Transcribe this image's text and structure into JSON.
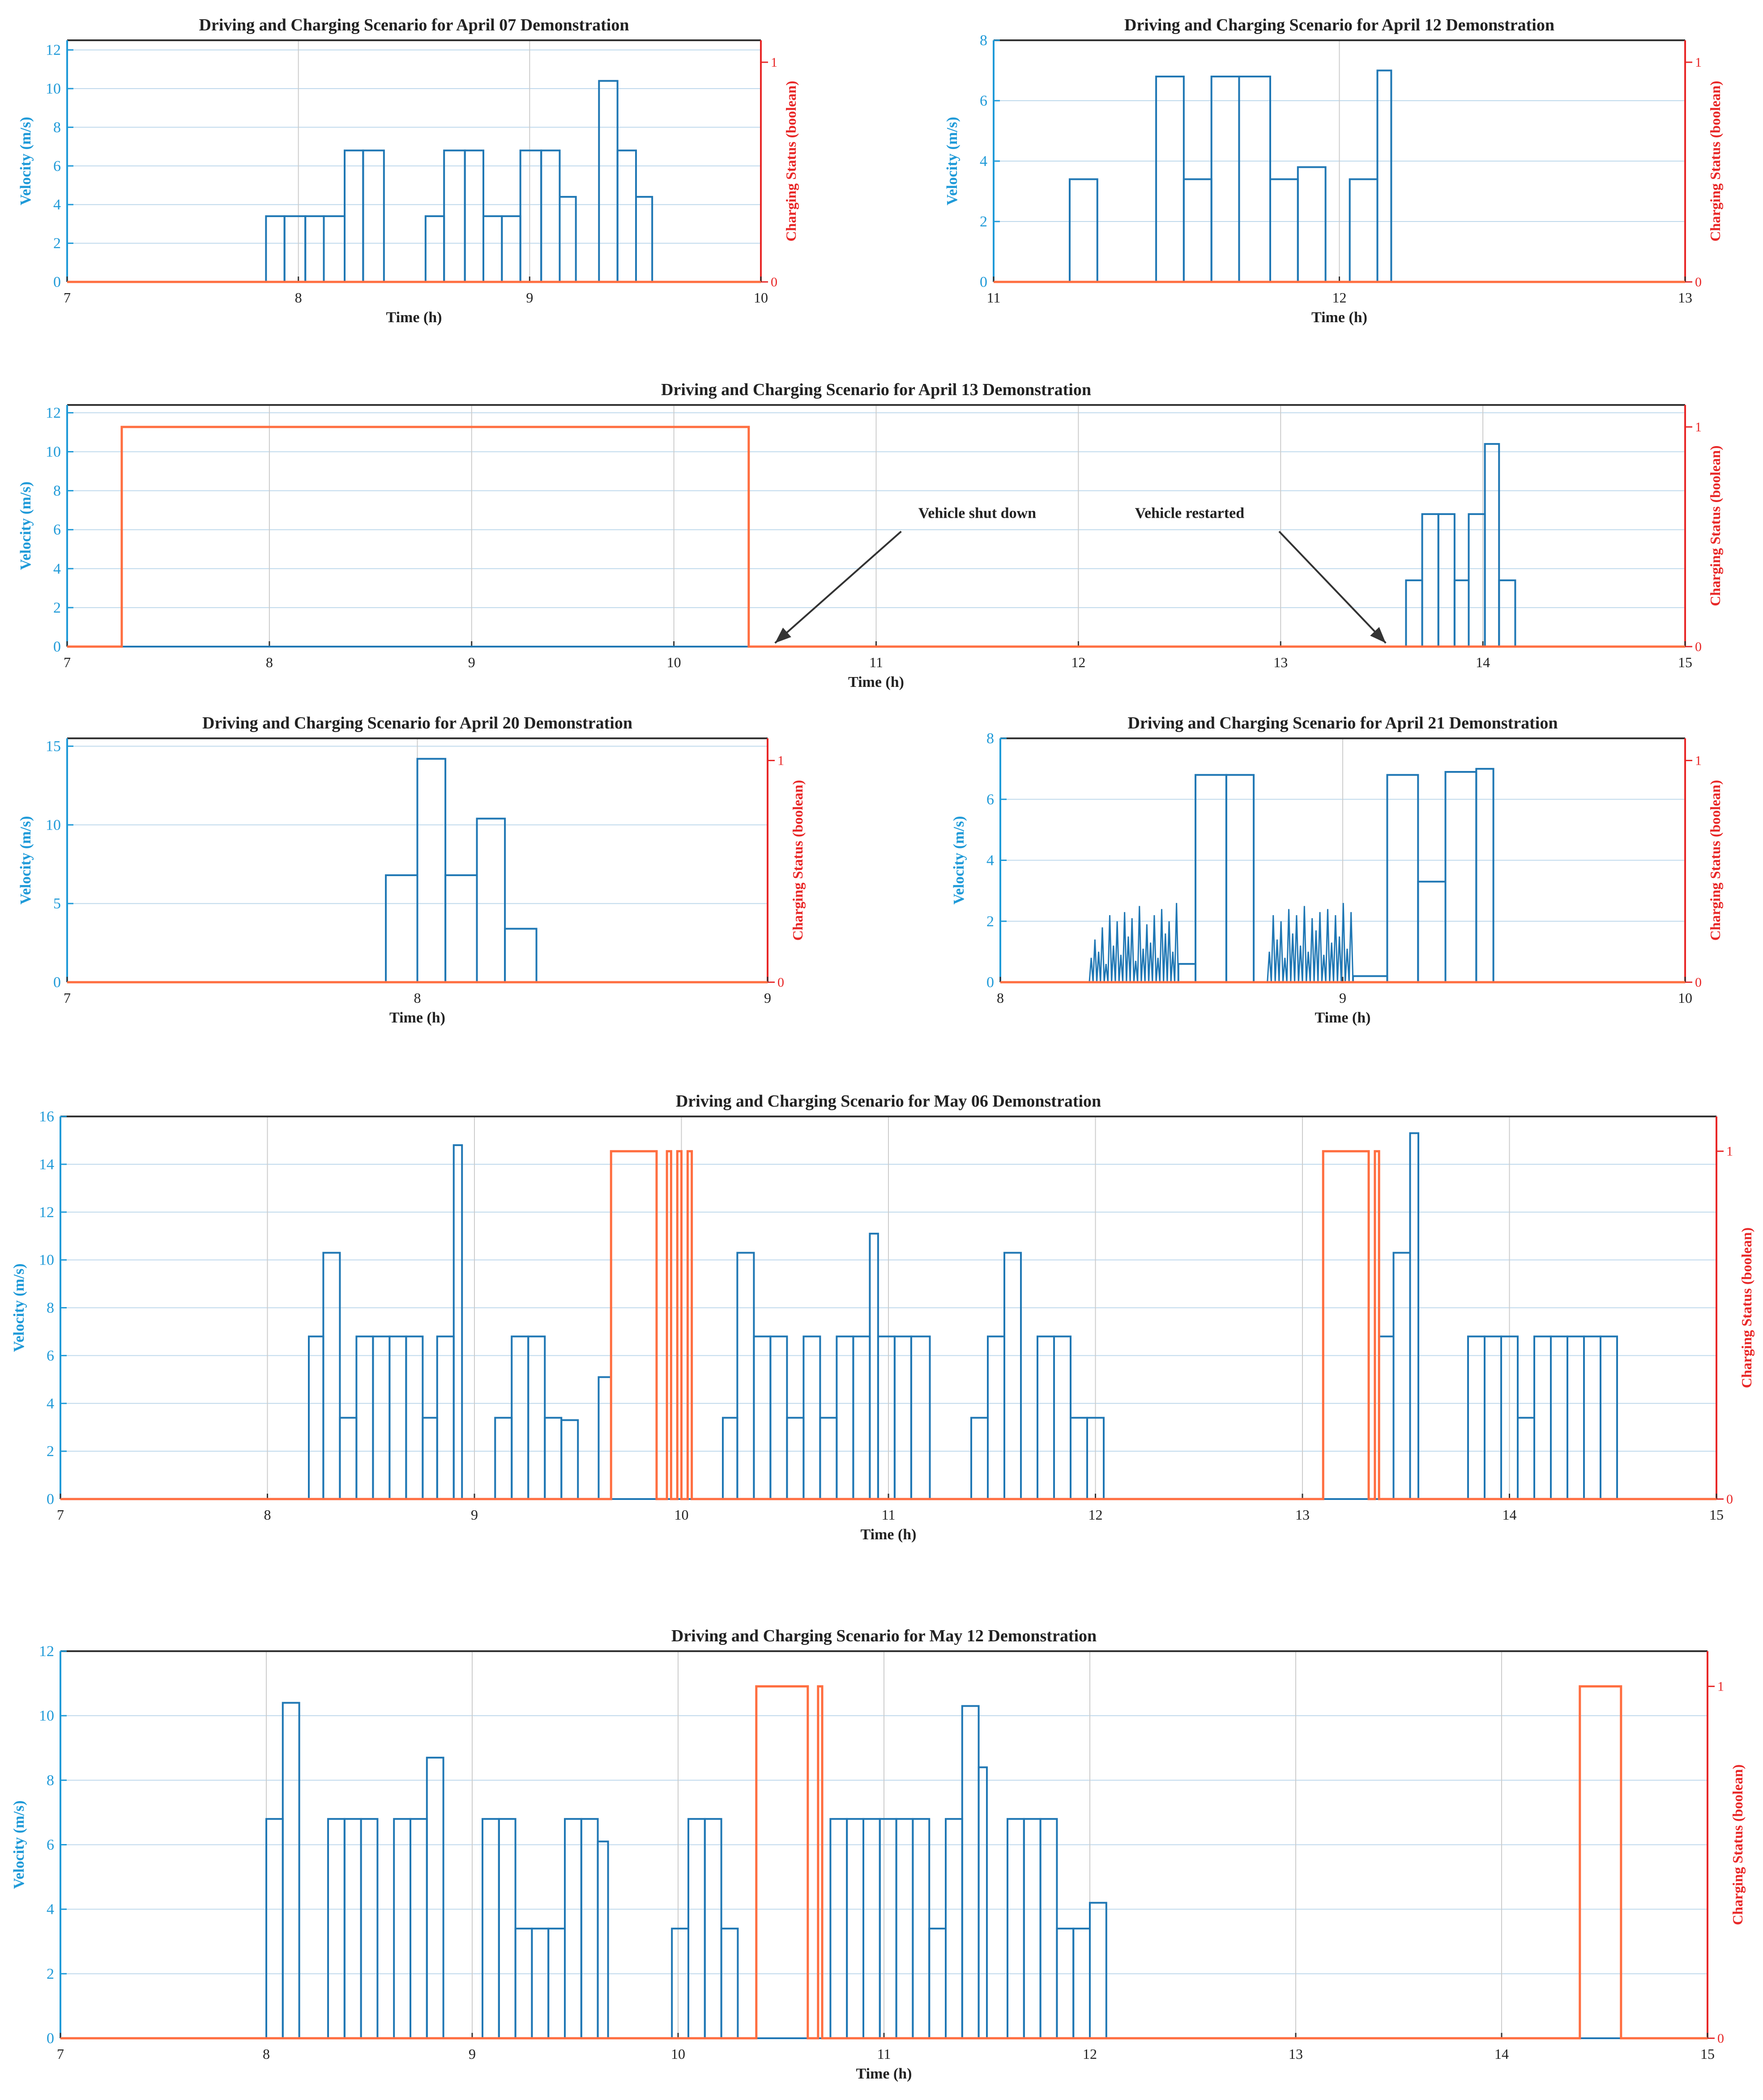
{
  "colors": {
    "velocity": "#1f77b4",
    "charging": "#ff6e40",
    "left_axis": "#1f9ad8",
    "right_axis": "#e82727",
    "grid": "#bfd9ec"
  },
  "chart_data": [
    {
      "id": "apr07",
      "type": "line",
      "title": "Driving and Charging Scenario for April 07 Demonstration",
      "xlabel": "Time (h)",
      "ylabel": "Velocity (m/s)",
      "ylabel_right": "Charging Status (boolean)",
      "xlim": [
        7,
        10
      ],
      "ylim": [
        0,
        12.5
      ],
      "ylim_right": [
        0,
        1.1
      ],
      "xticks": [
        7,
        8,
        9,
        10
      ],
      "yticks": [
        0,
        2,
        4,
        6,
        8,
        10,
        12
      ],
      "yticks_right": [
        0,
        1
      ],
      "grid": true,
      "velocity_pulses": [
        [
          7.86,
          7.94,
          3.4
        ],
        [
          7.94,
          8.03,
          3.4
        ],
        [
          8.03,
          8.11,
          3.4
        ],
        [
          8.11,
          8.2,
          3.4
        ],
        [
          8.2,
          8.28,
          6.8
        ],
        [
          8.28,
          8.37,
          6.8
        ],
        [
          8.55,
          8.63,
          3.4
        ],
        [
          8.63,
          8.72,
          6.8
        ],
        [
          8.72,
          8.8,
          6.8
        ],
        [
          8.8,
          8.88,
          3.4
        ],
        [
          8.88,
          8.96,
          3.4
        ],
        [
          8.96,
          9.05,
          6.8
        ],
        [
          9.05,
          9.13,
          6.8
        ],
        [
          9.13,
          9.2,
          4.4
        ],
        [
          9.3,
          9.38,
          10.4
        ],
        [
          9.38,
          9.46,
          6.8
        ],
        [
          9.46,
          9.53,
          4.4
        ]
      ],
      "charging_steps": [
        [
          7,
          0
        ],
        [
          10,
          0
        ]
      ]
    },
    {
      "id": "apr12",
      "type": "line",
      "title": "Driving and Charging Scenario for April 12 Demonstration",
      "xlabel": "Time (h)",
      "ylabel": "Velocity (m/s)",
      "ylabel_right": "Charging Status (boolean)",
      "xlim": [
        11,
        13
      ],
      "ylim": [
        0,
        8
      ],
      "ylim_right": [
        0,
        1.1
      ],
      "xticks": [
        11,
        12,
        13
      ],
      "yticks": [
        0,
        2,
        4,
        6,
        8
      ],
      "yticks_right": [
        0,
        1
      ],
      "grid": true,
      "velocity_pulses": [
        [
          11.22,
          11.3,
          3.4
        ],
        [
          11.47,
          11.55,
          6.8
        ],
        [
          11.55,
          11.63,
          3.4
        ],
        [
          11.63,
          11.71,
          6.8
        ],
        [
          11.71,
          11.8,
          6.8
        ],
        [
          11.8,
          11.88,
          3.4
        ],
        [
          11.88,
          11.96,
          3.8
        ],
        [
          12.03,
          12.11,
          3.4
        ],
        [
          12.11,
          12.15,
          7.0
        ]
      ],
      "charging_steps": [
        [
          11,
          0
        ],
        [
          13,
          0
        ]
      ]
    },
    {
      "id": "apr13",
      "type": "line",
      "title": "Driving and Charging Scenario for April 13 Demonstration",
      "xlabel": "Time (h)",
      "ylabel": "Velocity (m/s)",
      "ylabel_right": "Charging Status (boolean)",
      "xlim": [
        7,
        15
      ],
      "ylim": [
        0,
        12.4
      ],
      "ylim_right": [
        0,
        1.1
      ],
      "xticks": [
        7,
        8,
        9,
        10,
        11,
        12,
        13,
        14,
        15
      ],
      "yticks": [
        0,
        2,
        4,
        6,
        8,
        10,
        12
      ],
      "yticks_right": [
        0,
        1
      ],
      "grid": true,
      "velocity_pulses": [
        [
          13.62,
          13.7,
          3.4
        ],
        [
          13.7,
          13.78,
          6.8
        ],
        [
          13.78,
          13.86,
          6.8
        ],
        [
          13.86,
          13.93,
          3.4
        ],
        [
          13.93,
          14.01,
          6.8
        ],
        [
          14.01,
          14.08,
          10.4
        ],
        [
          14.08,
          14.16,
          3.4
        ]
      ],
      "charging_steps": [
        [
          7,
          0
        ],
        [
          7.27,
          0
        ],
        [
          7.27,
          1
        ],
        [
          10.37,
          1
        ],
        [
          10.37,
          0
        ],
        [
          15,
          0
        ]
      ],
      "annotations": [
        {
          "text": "Vehicle shut down",
          "x": 11.5,
          "y": 6.6,
          "target_x": 10.5,
          "target_y": 0
        },
        {
          "text": "Vehicle restarted",
          "x": 12.55,
          "y": 6.6,
          "target_x": 13.52,
          "target_y": 0
        }
      ]
    },
    {
      "id": "apr20",
      "type": "line",
      "title": "Driving and Charging Scenario for April 20 Demonstration",
      "xlabel": "Time (h)",
      "ylabel": "Velocity (m/s)",
      "ylabel_right": "Charging Status (boolean)",
      "xlim": [
        7,
        9
      ],
      "ylim": [
        0,
        15.5
      ],
      "ylim_right": [
        0,
        1.1
      ],
      "xticks": [
        7,
        8,
        9
      ],
      "yticks": [
        0,
        5,
        10,
        15
      ],
      "yticks_right": [
        0,
        1
      ],
      "grid": true,
      "velocity_pulses": [
        [
          7.91,
          8.0,
          6.8
        ],
        [
          8.0,
          8.08,
          14.2
        ],
        [
          8.08,
          8.17,
          6.8
        ],
        [
          8.17,
          8.25,
          10.4
        ],
        [
          8.25,
          8.34,
          3.4
        ]
      ],
      "charging_steps": [
        [
          7,
          0
        ],
        [
          9,
          0
        ]
      ]
    },
    {
      "id": "apr21",
      "type": "line",
      "title": "Driving and Charging Scenario for April 21 Demonstration",
      "xlabel": "Time (h)",
      "ylabel": "Velocity (m/s)",
      "ylabel_right": "Charging Status (boolean)",
      "xlim": [
        8,
        10
      ],
      "ylim": [
        0,
        8
      ],
      "ylim_right": [
        0,
        1.1
      ],
      "xticks": [
        8,
        9,
        10
      ],
      "yticks": [
        0,
        2,
        4,
        6,
        8
      ],
      "yticks_right": [
        0,
        1
      ],
      "grid": true,
      "velocity_pulses": [
        [
          8.52,
          8.57,
          0.6
        ],
        [
          8.57,
          8.66,
          6.8
        ],
        [
          8.66,
          8.74,
          6.8
        ],
        [
          9.03,
          9.13,
          0.2
        ],
        [
          9.13,
          9.22,
          6.8
        ],
        [
          9.22,
          9.3,
          3.3
        ],
        [
          9.3,
          9.39,
          6.9
        ],
        [
          9.39,
          9.44,
          7.0
        ]
      ],
      "velocity_noise": [
        {
          "x0": 8.26,
          "x1": 8.52,
          "peaks": [
            0.8,
            1.4,
            1.0,
            1.8,
            0.6,
            2.2,
            1.2,
            2.0,
            0.9,
            2.3,
            1.5,
            2.1,
            0.7,
            2.5,
            1.1,
            1.9,
            1.3,
            2.2,
            0.8,
            2.4,
            1.6,
            2.0,
            1.0,
            2.6
          ]
        },
        {
          "x0": 8.78,
          "x1": 9.03,
          "peaks": [
            1.0,
            2.2,
            1.4,
            2.0,
            0.8,
            2.4,
            1.6,
            2.2,
            1.2,
            2.5,
            1.0,
            2.1,
            1.7,
            2.3,
            0.9,
            2.4,
            1.3,
            2.2,
            1.5,
            2.6,
            1.1,
            2.3
          ]
        }
      ],
      "charging_steps": [
        [
          8,
          0
        ],
        [
          10,
          0
        ]
      ]
    },
    {
      "id": "may06",
      "type": "line",
      "title": "Driving and Charging Scenario for May 06 Demonstration",
      "xlabel": "Time (h)",
      "ylabel": "Velocity (m/s)",
      "ylabel_right": "Charging Status (boolean)",
      "xlim": [
        7,
        15
      ],
      "ylim": [
        0,
        16
      ],
      "ylim_right": [
        0,
        1.1
      ],
      "xticks": [
        7,
        8,
        9,
        10,
        11,
        12,
        13,
        14,
        15
      ],
      "yticks": [
        0,
        2,
        4,
        6,
        8,
        10,
        12,
        14,
        16
      ],
      "yticks_right": [
        0,
        1
      ],
      "grid": true,
      "velocity_pulses": [
        [
          8.2,
          8.27,
          6.8
        ],
        [
          8.27,
          8.35,
          10.3
        ],
        [
          8.35,
          8.43,
          3.4
        ],
        [
          8.43,
          8.51,
          6.8
        ],
        [
          8.51,
          8.59,
          6.8
        ],
        [
          8.59,
          8.67,
          6.8
        ],
        [
          8.67,
          8.75,
          6.8
        ],
        [
          8.75,
          8.82,
          3.4
        ],
        [
          8.82,
          8.9,
          6.8
        ],
        [
          8.9,
          8.94,
          14.8
        ],
        [
          9.1,
          9.18,
          3.4
        ],
        [
          9.18,
          9.26,
          6.8
        ],
        [
          9.26,
          9.34,
          6.8
        ],
        [
          9.34,
          9.42,
          3.4
        ],
        [
          9.42,
          9.5,
          3.3
        ],
        [
          9.6,
          9.66,
          5.1
        ],
        [
          10.2,
          10.27,
          3.4
        ],
        [
          10.27,
          10.35,
          10.3
        ],
        [
          10.35,
          10.43,
          6.8
        ],
        [
          10.43,
          10.51,
          6.8
        ],
        [
          10.51,
          10.59,
          3.4
        ],
        [
          10.59,
          10.67,
          6.8
        ],
        [
          10.67,
          10.75,
          3.4
        ],
        [
          10.75,
          10.83,
          6.8
        ],
        [
          10.83,
          10.91,
          6.8
        ],
        [
          10.91,
          10.95,
          11.1
        ],
        [
          10.95,
          11.03,
          6.8
        ],
        [
          11.03,
          11.11,
          6.8
        ],
        [
          11.11,
          11.2,
          6.8
        ],
        [
          11.4,
          11.48,
          3.4
        ],
        [
          11.48,
          11.56,
          6.8
        ],
        [
          11.56,
          11.64,
          10.3
        ],
        [
          11.72,
          11.8,
          6.8
        ],
        [
          11.8,
          11.88,
          6.8
        ],
        [
          11.88,
          11.96,
          3.4
        ],
        [
          11.96,
          12.04,
          3.4
        ],
        [
          13.37,
          13.44,
          6.8
        ],
        [
          13.44,
          13.52,
          10.3
        ],
        [
          13.52,
          13.56,
          15.3
        ],
        [
          13.8,
          13.88,
          6.8
        ],
        [
          13.88,
          13.96,
          6.8
        ],
        [
          13.96,
          14.04,
          6.8
        ],
        [
          14.04,
          14.12,
          3.4
        ],
        [
          14.12,
          14.2,
          6.8
        ],
        [
          14.2,
          14.28,
          6.8
        ],
        [
          14.28,
          14.36,
          6.8
        ],
        [
          14.36,
          14.44,
          6.8
        ],
        [
          14.44,
          14.52,
          6.8
        ]
      ],
      "charging_steps": [
        [
          7,
          0
        ],
        [
          9.66,
          0
        ],
        [
          9.66,
          1
        ],
        [
          9.88,
          1
        ],
        [
          9.88,
          0
        ],
        [
          9.93,
          0
        ],
        [
          9.93,
          1
        ],
        [
          9.95,
          1
        ],
        [
          9.95,
          0
        ],
        [
          9.98,
          0
        ],
        [
          9.98,
          1
        ],
        [
          10.0,
          1
        ],
        [
          10.0,
          0
        ],
        [
          10.03,
          0
        ],
        [
          10.03,
          1
        ],
        [
          10.05,
          1
        ],
        [
          10.05,
          0
        ],
        [
          13.1,
          0
        ],
        [
          13.1,
          1
        ],
        [
          13.32,
          1
        ],
        [
          13.32,
          0
        ],
        [
          13.35,
          0
        ],
        [
          13.35,
          1
        ],
        [
          13.37,
          1
        ],
        [
          13.37,
          0
        ],
        [
          15,
          0
        ]
      ]
    },
    {
      "id": "may12",
      "type": "line",
      "title": "Driving and Charging Scenario for May 12 Demonstration",
      "xlabel": "Time (h)",
      "ylabel": "Velocity (m/s)",
      "ylabel_right": "Charging Status (boolean)",
      "xlim": [
        7,
        15
      ],
      "ylim": [
        0,
        12
      ],
      "ylim_right": [
        0,
        1.1
      ],
      "xticks": [
        7,
        8,
        9,
        10,
        11,
        12,
        13,
        14,
        15
      ],
      "yticks": [
        0,
        2,
        4,
        6,
        8,
        10,
        12
      ],
      "yticks_right": [
        0,
        1
      ],
      "grid": true,
      "velocity_pulses": [
        [
          8.0,
          8.08,
          6.8
        ],
        [
          8.08,
          8.16,
          10.4
        ],
        [
          8.3,
          8.38,
          6.8
        ],
        [
          8.38,
          8.46,
          6.8
        ],
        [
          8.46,
          8.54,
          6.8
        ],
        [
          8.62,
          8.7,
          6.8
        ],
        [
          8.7,
          8.78,
          6.8
        ],
        [
          8.78,
          8.86,
          8.7
        ],
        [
          9.05,
          9.13,
          6.8
        ],
        [
          9.13,
          9.21,
          6.8
        ],
        [
          9.21,
          9.29,
          3.4
        ],
        [
          9.29,
          9.37,
          3.4
        ],
        [
          9.37,
          9.45,
          3.4
        ],
        [
          9.45,
          9.53,
          6.8
        ],
        [
          9.53,
          9.61,
          6.8
        ],
        [
          9.61,
          9.66,
          6.1
        ],
        [
          9.97,
          10.05,
          3.4
        ],
        [
          10.05,
          10.13,
          6.8
        ],
        [
          10.13,
          10.21,
          6.8
        ],
        [
          10.21,
          10.29,
          3.4
        ],
        [
          10.74,
          10.82,
          6.8
        ],
        [
          10.82,
          10.9,
          6.8
        ],
        [
          10.9,
          10.98,
          6.8
        ],
        [
          10.98,
          11.06,
          6.8
        ],
        [
          11.06,
          11.14,
          6.8
        ],
        [
          11.14,
          11.22,
          6.8
        ],
        [
          11.22,
          11.3,
          3.4
        ],
        [
          11.3,
          11.38,
          6.8
        ],
        [
          11.38,
          11.46,
          10.3
        ],
        [
          11.46,
          11.5,
          8.4
        ],
        [
          11.6,
          11.68,
          6.8
        ],
        [
          11.68,
          11.76,
          6.8
        ],
        [
          11.76,
          11.84,
          6.8
        ],
        [
          11.84,
          11.92,
          3.4
        ],
        [
          11.92,
          12.0,
          3.4
        ],
        [
          12.0,
          12.08,
          4.2
        ]
      ],
      "charging_steps": [
        [
          7,
          0
        ],
        [
          10.38,
          0
        ],
        [
          10.38,
          1
        ],
        [
          10.63,
          1
        ],
        [
          10.63,
          0
        ],
        [
          10.68,
          0
        ],
        [
          10.68,
          1
        ],
        [
          10.7,
          1
        ],
        [
          10.7,
          0
        ],
        [
          14.38,
          0
        ],
        [
          14.38,
          1
        ],
        [
          14.58,
          1
        ],
        [
          14.58,
          0
        ],
        [
          15,
          0
        ]
      ]
    }
  ]
}
